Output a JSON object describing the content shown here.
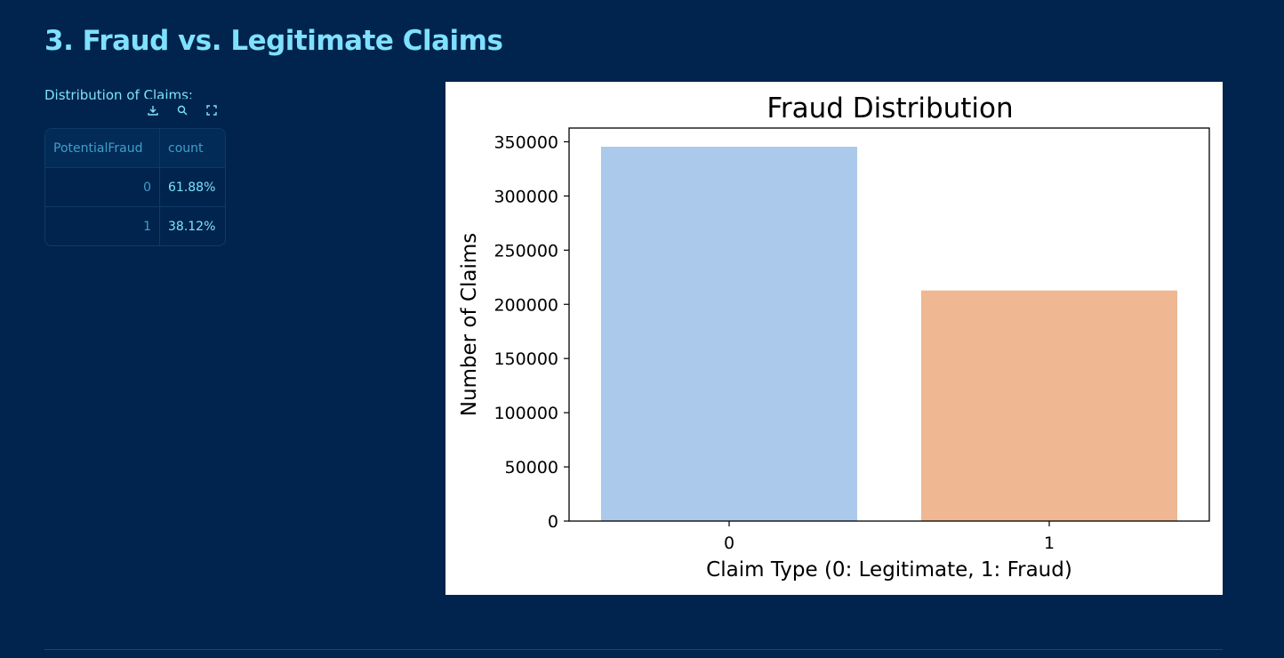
{
  "section": {
    "title": "3. Fraud vs. Legitimate Claims",
    "distribution_label": "Distribution of Claims:"
  },
  "toolbar": {
    "icons": [
      "download-icon",
      "search-icon",
      "fullscreen-icon"
    ]
  },
  "table": {
    "columns": [
      "PotentialFraud",
      "count"
    ],
    "rows": [
      {
        "index": "0",
        "count": "61.88%"
      },
      {
        "index": "1",
        "count": "38.12%"
      }
    ]
  },
  "chart_data": {
    "type": "bar",
    "title": "Fraud Distribution",
    "xlabel": "Claim Type (0: Legitimate, 1: Fraud)",
    "ylabel": "Number of Claims",
    "categories": [
      "0",
      "1"
    ],
    "values": [
      345415,
      212796
    ],
    "colors": [
      "#abc9ea",
      "#efb792"
    ],
    "ylim": [
      0,
      362686
    ],
    "yticks": [
      0,
      50000,
      100000,
      150000,
      200000,
      250000,
      300000,
      350000
    ],
    "grid": false
  },
  "colors": {
    "background": "#00244d",
    "accent": "#7fe1ff",
    "table_header_text": "#3f9fc9"
  }
}
